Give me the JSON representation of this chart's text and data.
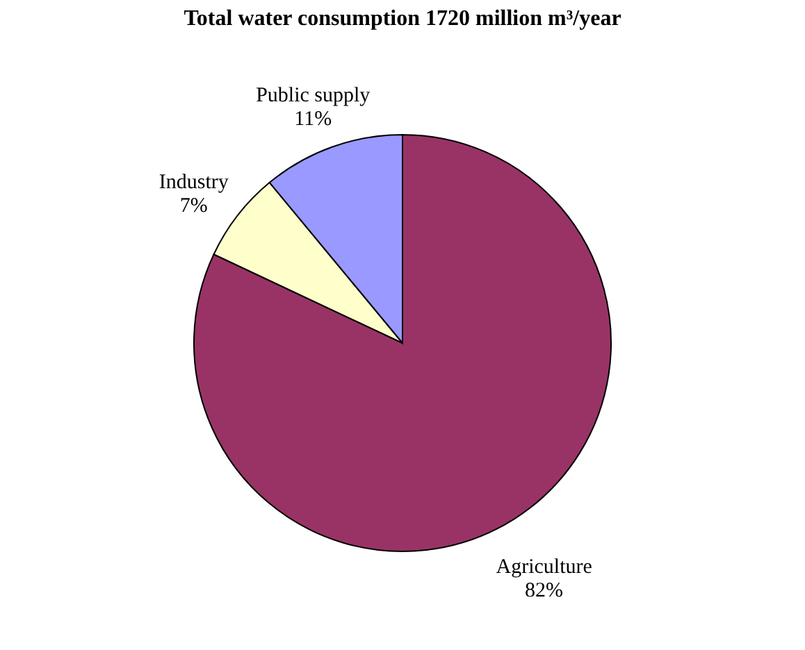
{
  "chart_data": {
    "type": "pie",
    "title": "Total water consumption 1720 million m³/year",
    "categories": [
      "Agriculture",
      "Industry",
      "Public supply"
    ],
    "values": [
      82,
      7,
      11
    ],
    "colors": [
      "#993366",
      "#ffffcc",
      "#9999ff"
    ],
    "value_labels": [
      "82%",
      "7%",
      "11%"
    ],
    "legend": false
  }
}
